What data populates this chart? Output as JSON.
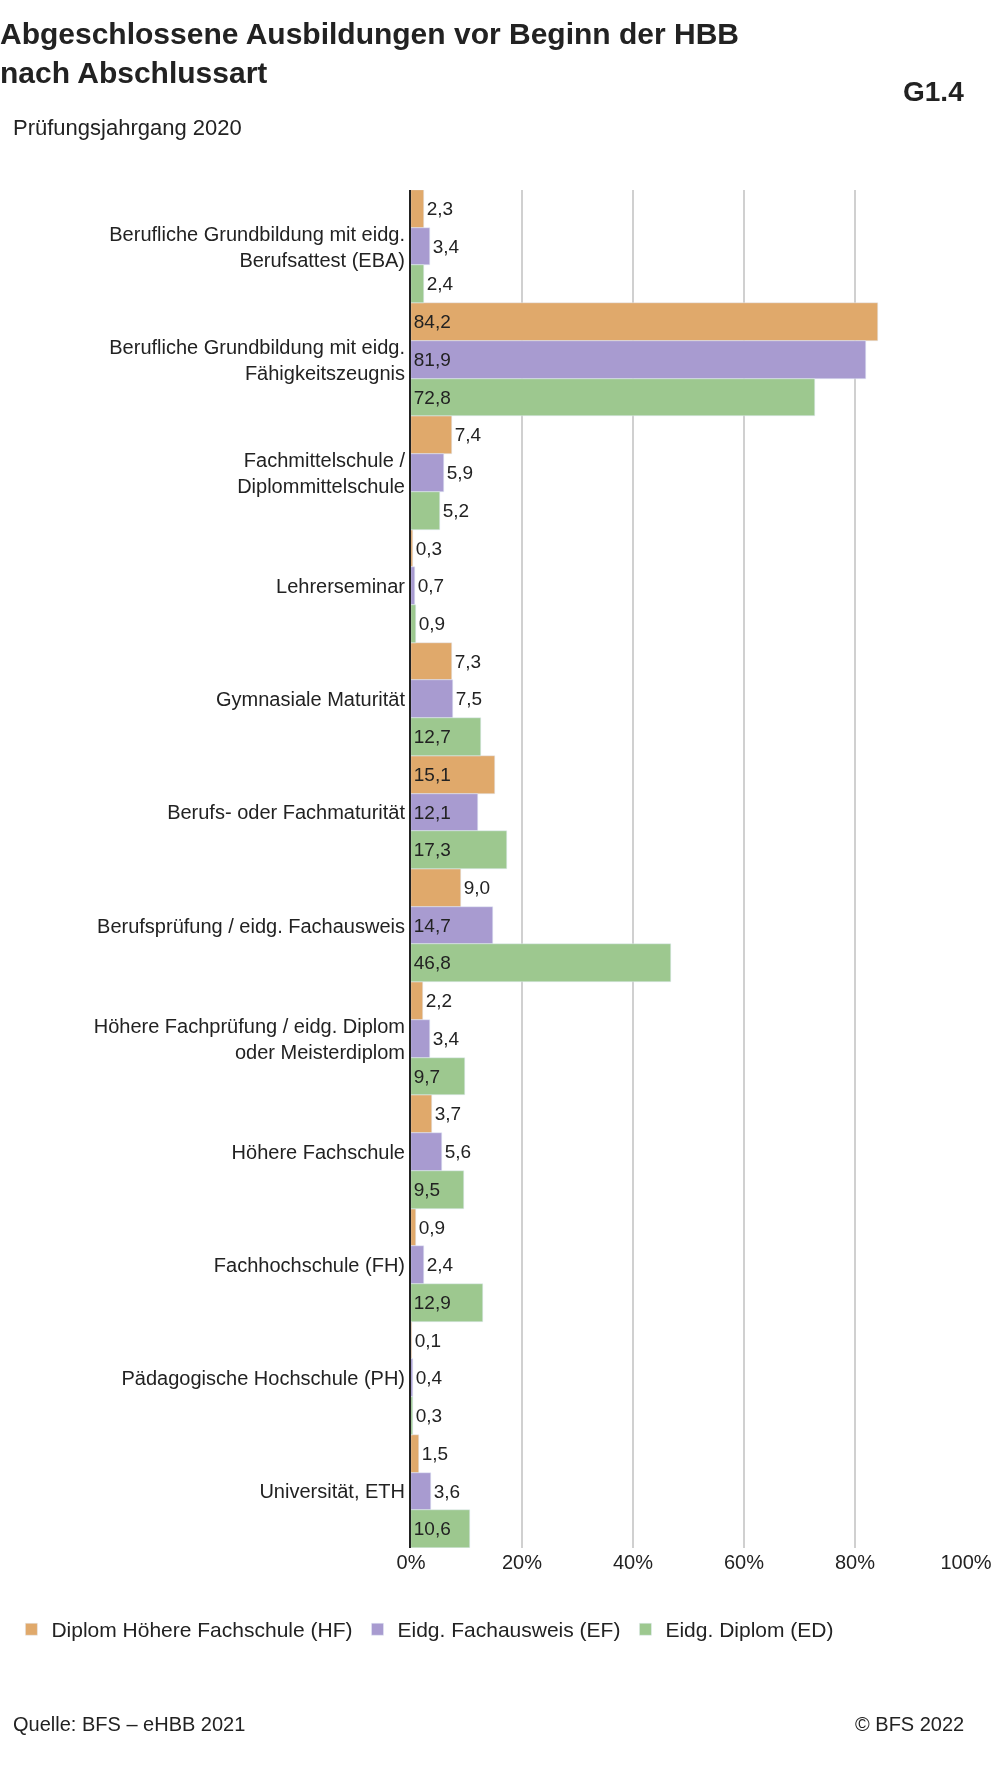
{
  "chart_data": {
    "type": "bar",
    "orientation": "horizontal",
    "title": "Abgeschlossene Ausbildungen vor Beginn der HBB nach Abschlussart",
    "subtitle": "Prüfungsjahrgang 2020",
    "annotations": [
      "G1.4",
      "Quelle: BFS – eHBB 2021",
      "© BFS 2022"
    ],
    "categories": [
      "Berufliche Grundbildung mit eidg. Berufsattest (EBA)",
      "Berufliche Grundbildung mit eidg. Fähigkeitszeugnis",
      "Fachmittelschule / Diplommittelschule",
      "Lehrerseminar",
      "Gymnasiale Maturität",
      "Berufs- oder Fachmaturität",
      "Berufsprüfung / eidg. Fachausweis",
      "Höhere Fachprüfung / eidg. Diplom oder Meisterdiplom",
      "Höhere Fachschule",
      "Fachhochschule (FH)",
      "Pädagogische Hochschule (PH)",
      "Universität, ETH"
    ],
    "series": [
      {
        "name": "Diplom Höhere Fachschule (HF)",
        "color": "#e0a96b",
        "values": [
          2.3,
          84.2,
          7.4,
          0.3,
          7.3,
          15.1,
          9.0,
          2.2,
          3.7,
          0.9,
          0.1,
          1.5
        ],
        "value_labels": [
          "2,3",
          "84,2",
          "7,4",
          "0,3",
          "7,3",
          "15,1",
          "9,0",
          "2,2",
          "3,7",
          "0,9",
          "0,1",
          "1,5"
        ]
      },
      {
        "name": "Eidg. Fachausweis (EF)",
        "color": "#a89bd0",
        "values": [
          3.4,
          81.9,
          5.9,
          0.7,
          7.5,
          12.1,
          14.7,
          3.4,
          5.6,
          2.4,
          0.4,
          3.6
        ],
        "value_labels": [
          "3,4",
          "81,9",
          "5,9",
          "0,7",
          "7,5",
          "12,1",
          "14,7",
          "3,4",
          "5,6",
          "2,4",
          "0,4",
          "3,6"
        ]
      },
      {
        "name": "Eidg. Diplom (ED)",
        "color": "#9dc88f",
        "values": [
          2.4,
          72.8,
          5.2,
          0.9,
          12.7,
          17.3,
          46.8,
          9.7,
          9.5,
          12.9,
          0.3,
          10.6
        ],
        "value_labels": [
          "2,4",
          "72,8",
          "5,2",
          "0,9",
          "12,7",
          "17,3",
          "46,8",
          "9,7",
          "9,5",
          "12,9",
          "0,3",
          "10,6"
        ]
      }
    ],
    "xlim": [
      0,
      100
    ],
    "xticks": [
      {
        "value": 0,
        "label": "0%"
      },
      {
        "value": 20,
        "label": "20%"
      },
      {
        "value": 40,
        "label": "40%"
      },
      {
        "value": 60,
        "label": "60%"
      },
      {
        "value": 80,
        "label": "80%"
      },
      {
        "value": 100,
        "label": "100%"
      }
    ],
    "grid": "x",
    "legend": "bottom"
  }
}
